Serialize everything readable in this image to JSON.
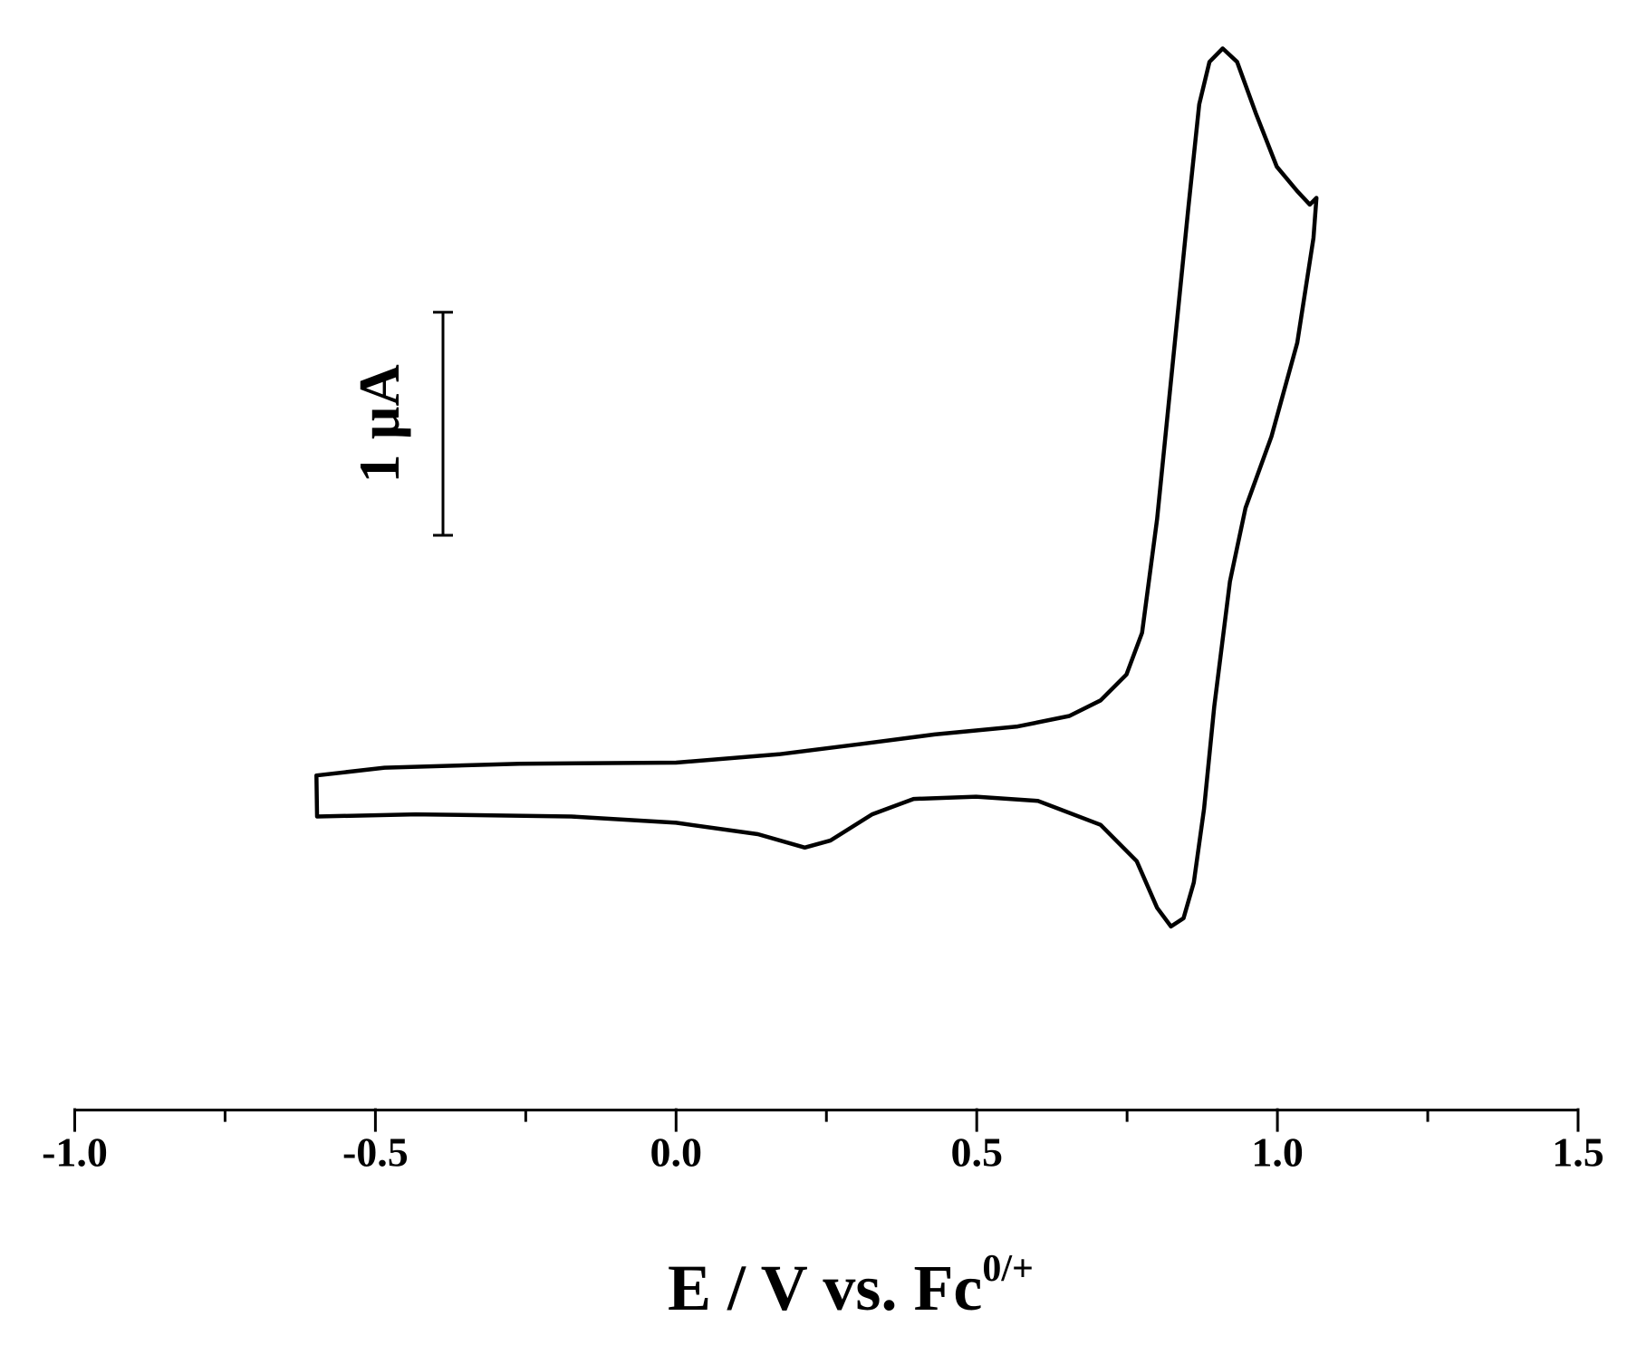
{
  "chart_data": {
    "type": "line",
    "xlabel": "E / V vs. Fc",
    "xlabel_superscript": "0/+",
    "scale_bar": {
      "value": 1,
      "label": "1 µA"
    },
    "xlim": [
      -1.0,
      1.5
    ],
    "xticks": [
      {
        "value": -1.0,
        "label": "-1.0"
      },
      -0.5,
      {
        "value": 0,
        "label": "0.0"
      },
      0.5,
      {
        "value": 1.0,
        "label": "1.0"
      },
      1.5
    ],
    "xminor_ticks": [
      -0.75,
      -0.25,
      0.25,
      0.75,
      1.25
    ],
    "ylim": [
      0,
      5
    ],
    "series": [
      {
        "color": "#000000",
        "x": [
          -0.598,
          -0.485,
          -0.26,
          0,
          0.171,
          0.309,
          0.43,
          0.568,
          0.654,
          0.706,
          0.749,
          0.775,
          0.8,
          0.826,
          0.852,
          0.87,
          0.887,
          0.909,
          0.933,
          0.964,
          0.999,
          1.033,
          1.054,
          1.065,
          1.06,
          1.033,
          0.99,
          0.947,
          0.921,
          0.895,
          0.878,
          0.861,
          0.844,
          0.823,
          0.8,
          0.766,
          0.706,
          0.602,
          0.499,
          0.395,
          0.326,
          0.257,
          0.214,
          0.136,
          0,
          -0.174,
          -0.433,
          -0.597
        ],
        "values": [
          1.5,
          1.535,
          1.553,
          1.558,
          1.595,
          1.642,
          1.684,
          1.72,
          1.767,
          1.837,
          1.953,
          2.14,
          2.65,
          3.35,
          4.05,
          4.51,
          4.7,
          4.76,
          4.7,
          4.47,
          4.23,
          4.12,
          4.06,
          4.09,
          3.91,
          3.44,
          3.02,
          2.7,
          2.37,
          1.81,
          1.35,
          1.02,
          0.86,
          0.823,
          0.907,
          1.116,
          1.279,
          1.386,
          1.405,
          1.395,
          1.326,
          1.209,
          1.177,
          1.237,
          1.288,
          1.316,
          1.326,
          1.316
        ]
      }
    ]
  }
}
